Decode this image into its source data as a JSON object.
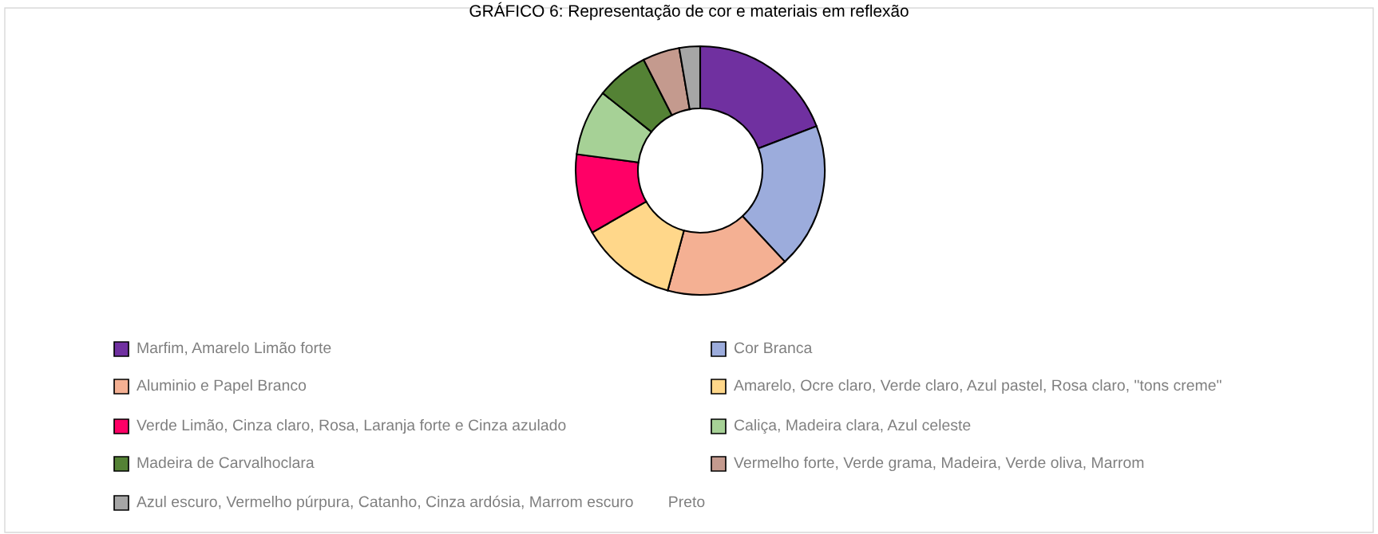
{
  "chart_data": {
    "type": "donut",
    "title": "GRÁFICO 6: Representação de cor e materiais em reflexão",
    "categories": [
      "Marfim, Amarelo Limão forte",
      "Cor Branca",
      "Aluminio e Papel Branco",
      "Amarelo, Ocre claro, Verde claro, Azul pastel, Rosa claro, \"tons creme\"",
      "Verde Limão, Cinza claro, Rosa, Laranja forte e Cinza azulado",
      "Caliça, Madeira clara, Azul celeste",
      "Madeira de Carvalhoclara",
      "Vermelho forte, Verde grama, Madeira, Verde oliva, Marrom",
      "Azul escuro, Vermelho púrpura, Catanho, Cinza ardósia, Marrom escuro        Preto"
    ],
    "values": [
      19.2,
      18.9,
      16.1,
      12.5,
      10.4,
      8.6,
      6.8,
      4.8,
      2.7
    ],
    "colors": [
      "#7030a0",
      "#9cacdc",
      "#f4b093",
      "#ffd78a",
      "#ff0066",
      "#a6d196",
      "#548235",
      "#c49a8e",
      "#a6a6a6"
    ],
    "legend": "bottom"
  }
}
